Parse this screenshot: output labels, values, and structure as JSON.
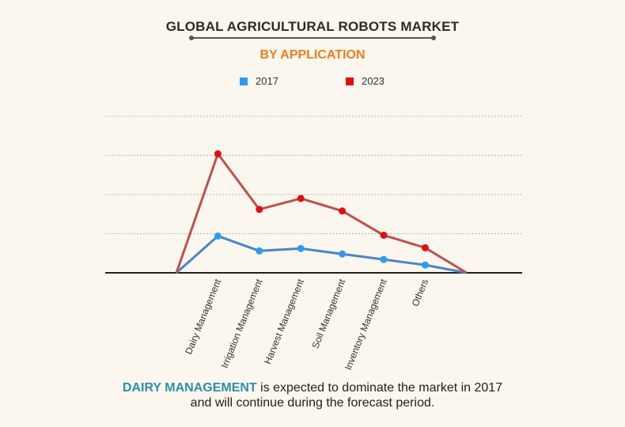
{
  "title": "GLOBAL AGRICULTURAL ROBOTS MARKET",
  "subtitle": "BY APPLICATION",
  "colors": {
    "subtitle": "#f07d1a",
    "highlight": "#2a8fa8",
    "series_2017": "#4a86c8",
    "series_2023": "#c0504d",
    "marker_2017": "#2e9bf0",
    "marker_2023": "#e01010"
  },
  "footer": {
    "highlight": "DAIRY MANAGEMENT",
    "line1_rest": " is expected to dominate the market in 2017",
    "line2": "and will continue during the forecast period."
  },
  "chart_data": {
    "type": "line",
    "categories": [
      "",
      "Dairy Management",
      "Irrigation Management",
      "Harvest Management",
      "Soil Management",
      "Inventory Management",
      "Others",
      ""
    ],
    "ylim": [
      0,
      200
    ],
    "grid": true,
    "legend_position": "top-center",
    "series": [
      {
        "name": "2017",
        "values": [
          0,
          47,
          28,
          31,
          24,
          17,
          10,
          0
        ]
      },
      {
        "name": "2023",
        "values": [
          0,
          152,
          81,
          95,
          79,
          48,
          32,
          0
        ]
      }
    ]
  }
}
